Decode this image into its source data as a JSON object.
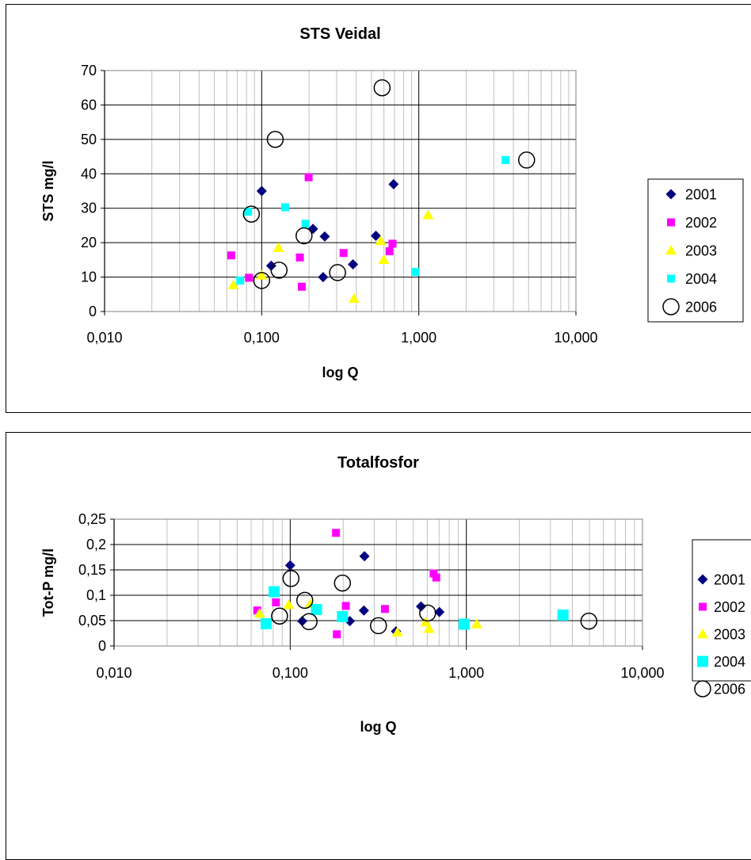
{
  "colors": {
    "2001": "#000080",
    "2002": "#ff00ff",
    "2003": "#ffff00",
    "2004": "#00ffff",
    "2006": "#000000",
    "grid_major": "#000000",
    "grid_minor": "#c0c0c0"
  },
  "chart_data": [
    {
      "type": "scatter",
      "title": "STS Veidal",
      "xlabel": "log Q",
      "ylabel": "STS mg/l",
      "xscale": "log",
      "xlim": [
        0.01,
        10
      ],
      "ylim": [
        0,
        70
      ],
      "yticks": [
        0,
        10,
        20,
        30,
        40,
        50,
        60,
        70
      ],
      "ytick_labels": [
        "0",
        "10",
        "20",
        "30",
        "40",
        "50",
        "60",
        "70"
      ],
      "xticks": [
        0.01,
        0.1,
        1,
        10
      ],
      "xtick_labels": [
        "0,010",
        "0,100",
        "1,000",
        "10,000"
      ],
      "grid": true,
      "legend_position": "right",
      "series": [
        {
          "name": "2001",
          "marker": "diamond",
          "points": [
            [
              0.1,
              35.0
            ],
            [
              0.115,
              13.3
            ],
            [
              0.212,
              24.0
            ],
            [
              0.252,
              21.8
            ],
            [
              0.246,
              10.0
            ],
            [
              0.381,
              13.7
            ],
            [
              0.533,
              22.0
            ],
            [
              0.691,
              37.0
            ]
          ]
        },
        {
          "name": "2002",
          "marker": "square",
          "points": [
            [
              0.064,
              16.3
            ],
            [
              0.083,
              9.8
            ],
            [
              0.175,
              15.7
            ],
            [
              0.18,
              7.2
            ],
            [
              0.199,
              39.0
            ],
            [
              0.332,
              17.0
            ],
            [
              0.651,
              17.5
            ],
            [
              0.68,
              19.7
            ]
          ]
        },
        {
          "name": "2003",
          "marker": "triangle",
          "points": [
            [
              0.066,
              7.7
            ],
            [
              0.1,
              10.5
            ],
            [
              0.128,
              18.5
            ],
            [
              0.387,
              3.7
            ],
            [
              0.571,
              20.5
            ],
            [
              0.598,
              15.0
            ],
            [
              1.144,
              28.0
            ]
          ]
        },
        {
          "name": "2004",
          "marker": "square",
          "points": [
            [
              0.073,
              9.0
            ],
            [
              0.082,
              29.0
            ],
            [
              0.141,
              30.3
            ],
            [
              0.19,
              25.5
            ],
            [
              0.952,
              11.5
            ],
            [
              3.565,
              44.0
            ]
          ]
        },
        {
          "name": "2006",
          "marker": "circle",
          "points": [
            [
              0.086,
              28.3
            ],
            [
              0.1,
              9.0
            ],
            [
              0.122,
              50.0
            ],
            [
              0.129,
              12.0
            ],
            [
              0.186,
              22.0
            ],
            [
              0.304,
              11.3
            ],
            [
              0.584,
              65.0
            ],
            [
              4.854,
              44.0
            ]
          ]
        }
      ]
    },
    {
      "type": "scatter",
      "title": "Totalfosfor",
      "xlabel": "log Q",
      "ylabel": "Tot-P mg/l",
      "xscale": "log",
      "xlim": [
        0.01,
        10
      ],
      "ylim": [
        0,
        0.25
      ],
      "yticks": [
        0,
        0.05,
        0.1,
        0.15,
        0.2,
        0.25
      ],
      "ytick_labels": [
        "0",
        "0,05",
        "0,1",
        "0,15",
        "0,2",
        "0,25"
      ],
      "xticks": [
        0.01,
        0.1,
        1,
        10
      ],
      "xtick_labels": [
        "0,010",
        "0,100",
        "1,000",
        "10,000"
      ],
      "grid": true,
      "legend_position": "right",
      "series": [
        {
          "name": "2001",
          "marker": "diamond",
          "points": [
            [
              0.1,
              0.159
            ],
            [
              0.117,
              0.049
            ],
            [
              0.218,
              0.049
            ],
            [
              0.264,
              0.177
            ],
            [
              0.262,
              0.07
            ],
            [
              0.399,
              0.029
            ],
            [
              0.553,
              0.078
            ],
            [
              0.703,
              0.067
            ]
          ]
        },
        {
          "name": "2002",
          "marker": "square",
          "points": [
            [
              0.065,
              0.07
            ],
            [
              0.083,
              0.086
            ],
            [
              0.182,
              0.223
            ],
            [
              0.184,
              0.023
            ],
            [
              0.207,
              0.079
            ],
            [
              0.345,
              0.073
            ],
            [
              0.652,
              0.143
            ],
            [
              0.675,
              0.135
            ]
          ]
        },
        {
          "name": "2003",
          "marker": "triangle",
          "points": [
            [
              0.067,
              0.064
            ],
            [
              0.098,
              0.081
            ],
            [
              0.13,
              0.083
            ],
            [
              0.406,
              0.027
            ],
            [
              0.588,
              0.047
            ],
            [
              0.614,
              0.034
            ],
            [
              1.144,
              0.043
            ]
          ]
        },
        {
          "name": "2004",
          "marker": "square",
          "points": [
            [
              0.073,
              0.044
            ],
            [
              0.081,
              0.107
            ],
            [
              0.141,
              0.072
            ],
            [
              0.198,
              0.058
            ],
            [
              0.972,
              0.043
            ],
            [
              3.537,
              0.061
            ]
          ]
        },
        {
          "name": "2006",
          "marker": "circle",
          "points": [
            [
              0.087,
              0.059
            ],
            [
              0.101,
              0.133
            ],
            [
              0.121,
              0.09
            ],
            [
              0.128,
              0.048
            ],
            [
              0.198,
              0.124
            ],
            [
              0.317,
              0.04
            ],
            [
              0.603,
              0.065
            ],
            [
              4.963,
              0.049
            ]
          ]
        }
      ]
    }
  ]
}
